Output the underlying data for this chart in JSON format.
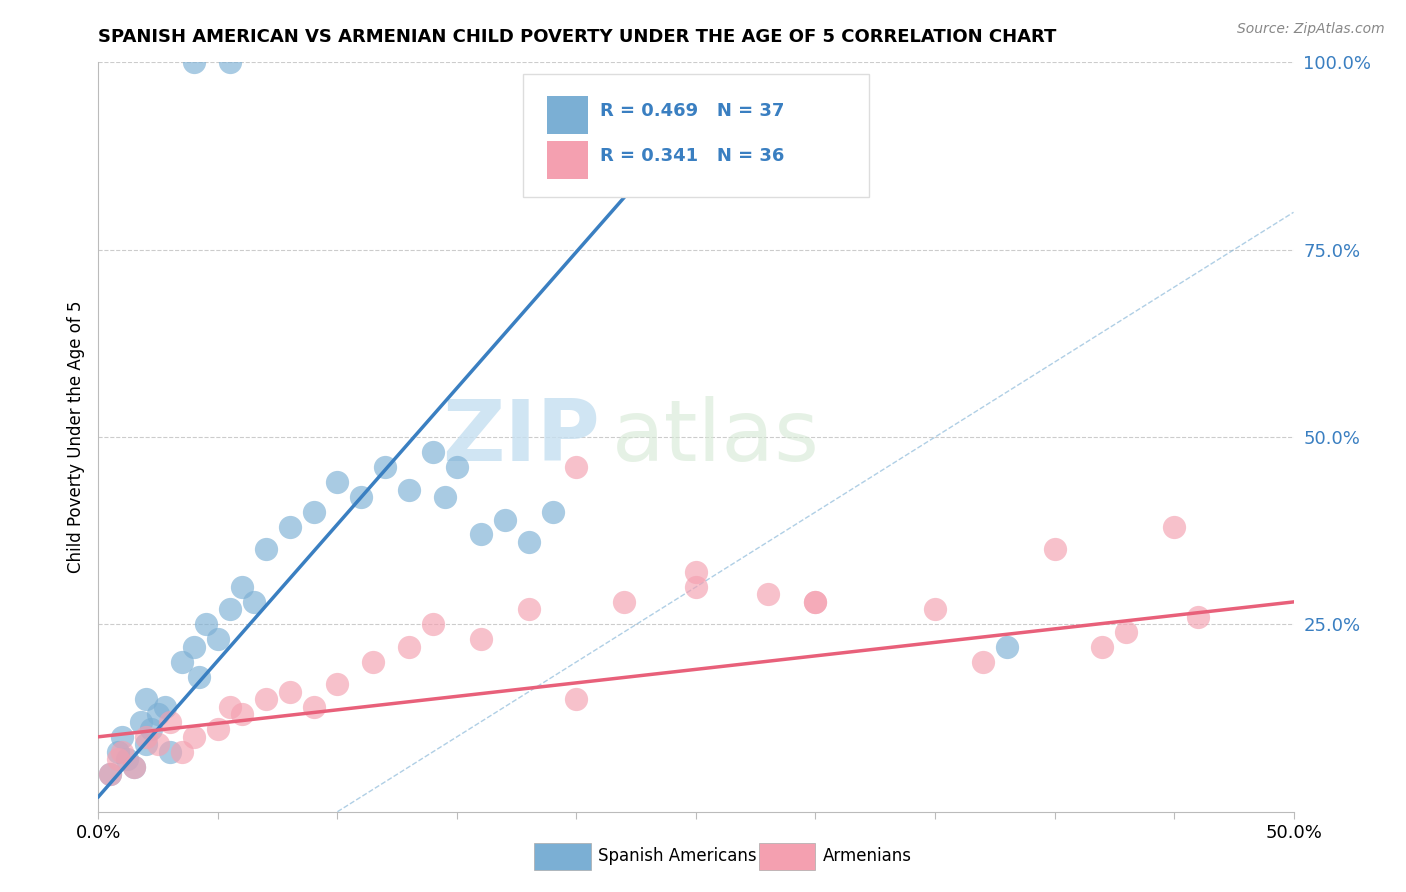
{
  "title": "SPANISH AMERICAN VS ARMENIAN CHILD POVERTY UNDER THE AGE OF 5 CORRELATION CHART",
  "source": "Source: ZipAtlas.com",
  "ylabel": "Child Poverty Under the Age of 5",
  "xlim": [
    0.0,
    0.5
  ],
  "ylim": [
    0.0,
    1.0
  ],
  "xticks": [
    0.0,
    0.05,
    0.1,
    0.15,
    0.2,
    0.25,
    0.3,
    0.35,
    0.4,
    0.45,
    0.5
  ],
  "xtick_labels": [
    "0.0%",
    "",
    "",
    "",
    "",
    "",
    "",
    "",
    "",
    "",
    "50.0%"
  ],
  "yticks": [
    0.0,
    0.25,
    0.5,
    0.75,
    1.0
  ],
  "ytick_labels": [
    "",
    "25.0%",
    "50.0%",
    "75.0%",
    "100.0%"
  ],
  "legend_blue_label": "Spanish Americans",
  "legend_pink_label": "Armenians",
  "r_blue": "R = 0.469",
  "n_blue": "N = 37",
  "r_pink": "R = 0.341",
  "n_pink": "N = 36",
  "blue_color": "#7bafd4",
  "pink_color": "#f4a0b0",
  "blue_line_color": "#3a7fc1",
  "pink_line_color": "#e8607a",
  "watermark_zip": "ZIP",
  "watermark_atlas": "atlas",
  "blue_scatter_x": [
    0.04,
    0.055,
    0.005,
    0.008,
    0.01,
    0.012,
    0.015,
    0.018,
    0.02,
    0.022,
    0.025,
    0.028,
    0.03,
    0.035,
    0.04,
    0.042,
    0.045,
    0.05,
    0.055,
    0.06,
    0.065,
    0.07,
    0.08,
    0.09,
    0.1,
    0.11,
    0.12,
    0.13,
    0.14,
    0.145,
    0.15,
    0.16,
    0.17,
    0.18,
    0.19,
    0.38,
    0.02
  ],
  "blue_scatter_y": [
    1.0,
    1.0,
    0.05,
    0.08,
    0.1,
    0.07,
    0.06,
    0.12,
    0.09,
    0.11,
    0.13,
    0.14,
    0.08,
    0.2,
    0.22,
    0.18,
    0.25,
    0.23,
    0.27,
    0.3,
    0.28,
    0.35,
    0.38,
    0.4,
    0.44,
    0.42,
    0.46,
    0.43,
    0.48,
    0.42,
    0.46,
    0.37,
    0.39,
    0.36,
    0.4,
    0.22,
    0.15
  ],
  "pink_scatter_x": [
    0.005,
    0.008,
    0.01,
    0.015,
    0.02,
    0.025,
    0.03,
    0.035,
    0.04,
    0.05,
    0.055,
    0.06,
    0.07,
    0.08,
    0.09,
    0.1,
    0.115,
    0.13,
    0.14,
    0.16,
    0.18,
    0.2,
    0.22,
    0.25,
    0.28,
    0.3,
    0.35,
    0.37,
    0.4,
    0.42,
    0.43,
    0.45,
    0.46,
    0.2,
    0.25,
    0.3
  ],
  "pink_scatter_y": [
    0.05,
    0.07,
    0.08,
    0.06,
    0.1,
    0.09,
    0.12,
    0.08,
    0.1,
    0.11,
    0.14,
    0.13,
    0.15,
    0.16,
    0.14,
    0.17,
    0.2,
    0.22,
    0.25,
    0.23,
    0.27,
    0.15,
    0.28,
    0.3,
    0.29,
    0.28,
    0.27,
    0.2,
    0.35,
    0.22,
    0.24,
    0.38,
    0.26,
    0.46,
    0.32,
    0.28
  ],
  "blue_line_x": [
    0.0,
    0.22
  ],
  "blue_line_y": [
    0.02,
    0.82
  ],
  "pink_line_x": [
    0.0,
    0.5
  ],
  "pink_line_y": [
    0.1,
    0.28
  ],
  "ref_line_x": [
    0.1,
    0.5
  ],
  "ref_line_y": [
    0.0,
    0.8
  ],
  "background_color": "#ffffff",
  "grid_color": "#cccccc"
}
